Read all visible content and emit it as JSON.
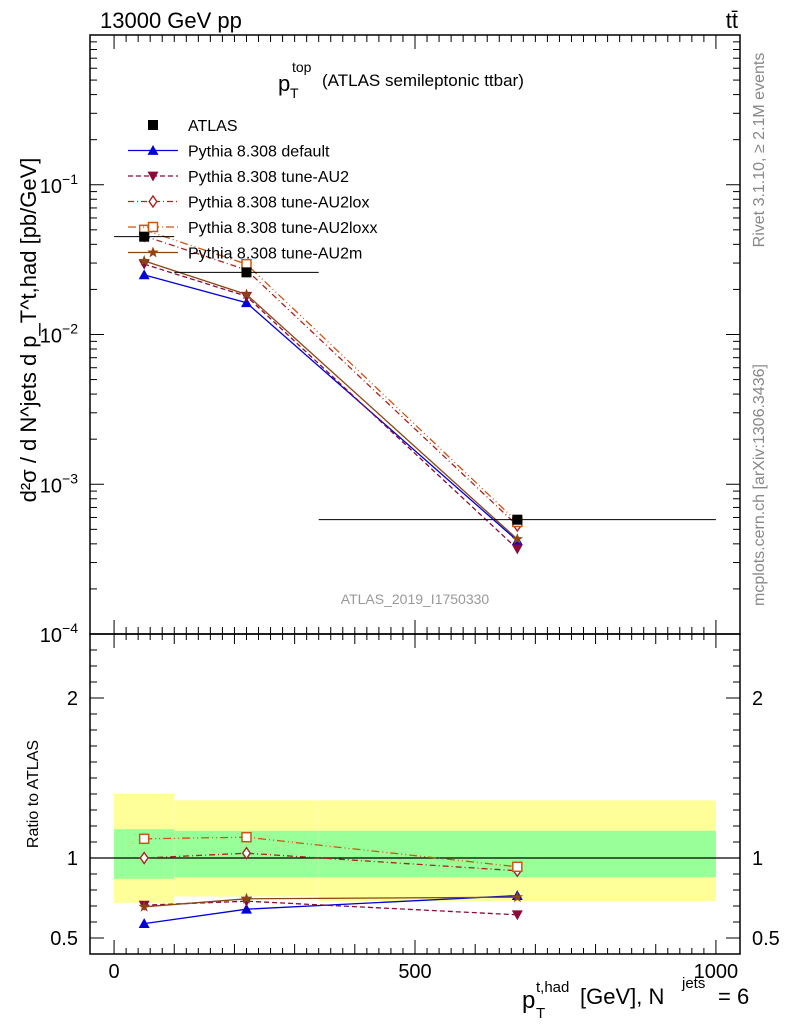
{
  "header": {
    "energy": "13000 GeV pp",
    "process": "tt̄"
  },
  "side_labels": {
    "rivet": "Rivet 3.1.10, ≥ 2.1M events",
    "mcplots": "mcplots.cern.ch [arXiv:1306.3436]"
  },
  "chart_data": [
    {
      "type": "line",
      "panel": "main",
      "title": {
        "main": "p",
        "sub": "T",
        "sup": "top",
        "rest": "(ATLAS semileptonic ttbar)"
      },
      "ylabel": "d²σ / d N^jets d p_T^t,had [pb/GeV]",
      "yscale": "log",
      "ylim": [
        0.0001,
        1
      ],
      "xlim": [
        -40,
        1040
      ],
      "y_ticks": [
        {
          "value": 0.1,
          "mantissa": "10",
          "exp": "−1"
        },
        {
          "value": 0.01,
          "mantissa": "10",
          "exp": "−2"
        },
        {
          "value": 0.001,
          "mantissa": "10",
          "exp": "−3"
        },
        {
          "value": 0.0001,
          "mantissa": "10",
          "exp": "−4"
        }
      ],
      "watermark": "ATLAS_2019_I1750330",
      "legend_position": "top-left",
      "data_series": {
        "name": "ATLAS",
        "x": [
          50,
          220,
          670
        ],
        "xerr": [
          50,
          120,
          330
        ],
        "y": [
          0.045,
          0.026,
          0.00058
        ]
      },
      "series": [
        {
          "name": "Pythia 8.308 default",
          "color": "#0000dd",
          "marker": "triangle-up",
          "dash": "",
          "x": [
            50,
            220,
            670
          ],
          "y": [
            0.025,
            0.0163,
            0.00042
          ]
        },
        {
          "name": "Pythia 8.308 tune-AU2",
          "color": "#8b0a3a",
          "marker": "triangle-down",
          "dash": "5,3",
          "x": [
            50,
            220,
            670
          ],
          "y": [
            0.0295,
            0.018,
            0.00037
          ]
        },
        {
          "name": "Pythia 8.308 tune-AU2lox",
          "color": "#aa2222",
          "marker": "diamond-open",
          "dash": "6,3,1,3",
          "x": [
            50,
            220,
            670
          ],
          "y": [
            0.0455,
            0.027,
            0.00053
          ]
        },
        {
          "name": "Pythia 8.308 tune-AU2loxx",
          "color": "#cc5511",
          "marker": "square-open",
          "dash": "8,3,1,3,1,3",
          "x": [
            50,
            220,
            670
          ],
          "y": [
            0.05,
            0.0295,
            0.00056
          ]
        },
        {
          "name": "Pythia 8.308 tune-AU2m",
          "color": "#8b4513",
          "marker": "star",
          "dash": "",
          "x": [
            50,
            220,
            670
          ],
          "y": [
            0.031,
            0.0185,
            0.00043
          ]
        }
      ]
    },
    {
      "type": "line",
      "panel": "ratio",
      "ylabel": "Ratio to ATLAS",
      "ylim": [
        0.4,
        2.4
      ],
      "xlim": [
        -40,
        1040
      ],
      "y_ticks": [
        {
          "value": 0.5,
          "label": "0.5"
        },
        {
          "value": 1,
          "label": "1"
        },
        {
          "value": 2,
          "label": "2"
        }
      ],
      "x_ticks": [
        {
          "value": 0,
          "label": "0"
        },
        {
          "value": 500,
          "label": "500"
        },
        {
          "value": 1000,
          "label": "1000"
        }
      ],
      "xlabel": {
        "p": "p",
        "sub": "T",
        "sup": "t,had",
        "rest": "[GeV], N",
        "sup2": "jets",
        "tail": "= 6"
      },
      "bands": [
        {
          "x0": 0,
          "x1": 100,
          "yellow": [
            0.72,
            1.4
          ],
          "green": [
            0.87,
            1.18
          ]
        },
        {
          "x0": 100,
          "x1": 340,
          "yellow": [
            0.76,
            1.36
          ],
          "green": [
            0.88,
            1.17
          ]
        },
        {
          "x0": 340,
          "x1": 1000,
          "yellow": [
            0.73,
            1.36
          ],
          "green": [
            0.88,
            1.17
          ]
        }
      ],
      "series": [
        {
          "name": "Pythia 8.308 default",
          "color": "#0000dd",
          "marker": "triangle-up",
          "dash": "",
          "x": [
            50,
            220,
            670
          ],
          "y": [
            0.59,
            0.68,
            0.765
          ],
          "err": [
            0,
            0,
            0.018
          ]
        },
        {
          "name": "Pythia 8.308 tune-AU2",
          "color": "#8b0a3a",
          "marker": "triangle-down",
          "dash": "5,3",
          "x": [
            50,
            220,
            670
          ],
          "y": [
            0.705,
            0.73,
            0.645
          ],
          "err": [
            0,
            0,
            0.018
          ]
        },
        {
          "name": "Pythia 8.308 tune-AU2lox",
          "color": "#aa2222",
          "marker": "diamond-open",
          "dash": "6,3,1,3",
          "x": [
            50,
            220,
            670
          ],
          "y": [
            1.0,
            1.03,
            0.92
          ],
          "err": [
            0,
            0,
            0.018
          ]
        },
        {
          "name": "Pythia 8.308 tune-AU2loxx",
          "color": "#cc5511",
          "marker": "square-open",
          "dash": "8,3,1,3,1,3",
          "x": [
            50,
            220,
            670
          ],
          "y": [
            1.12,
            1.13,
            0.945
          ],
          "err": [
            0,
            0,
            0.018
          ]
        },
        {
          "name": "Pythia 8.308 tune-AU2m",
          "color": "#8b4513",
          "marker": "star",
          "dash": "",
          "x": [
            50,
            220,
            670
          ],
          "y": [
            0.695,
            0.745,
            0.755
          ],
          "err": [
            0,
            0,
            0.015
          ]
        }
      ]
    }
  ]
}
